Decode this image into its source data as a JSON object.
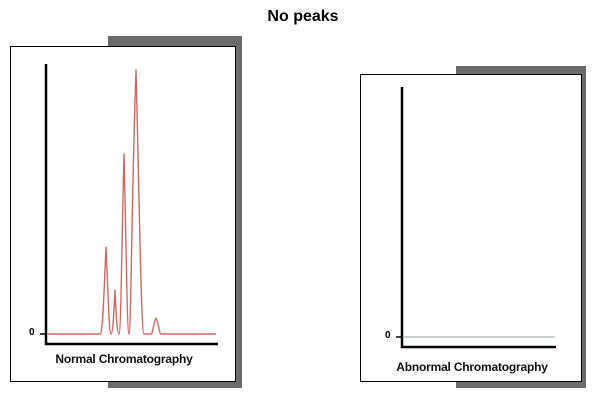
{
  "title": "No peaks",
  "panels": [
    {
      "zero_label": "0",
      "caption": "Normal Chromatography",
      "trace_color": "#d06a62"
    },
    {
      "zero_label": "0",
      "caption": "Abnormal Chromatography",
      "trace_color": "#b8c0c0"
    }
  ],
  "colors": {
    "shadow": "#6b6b6b",
    "axis": "#000000"
  }
}
